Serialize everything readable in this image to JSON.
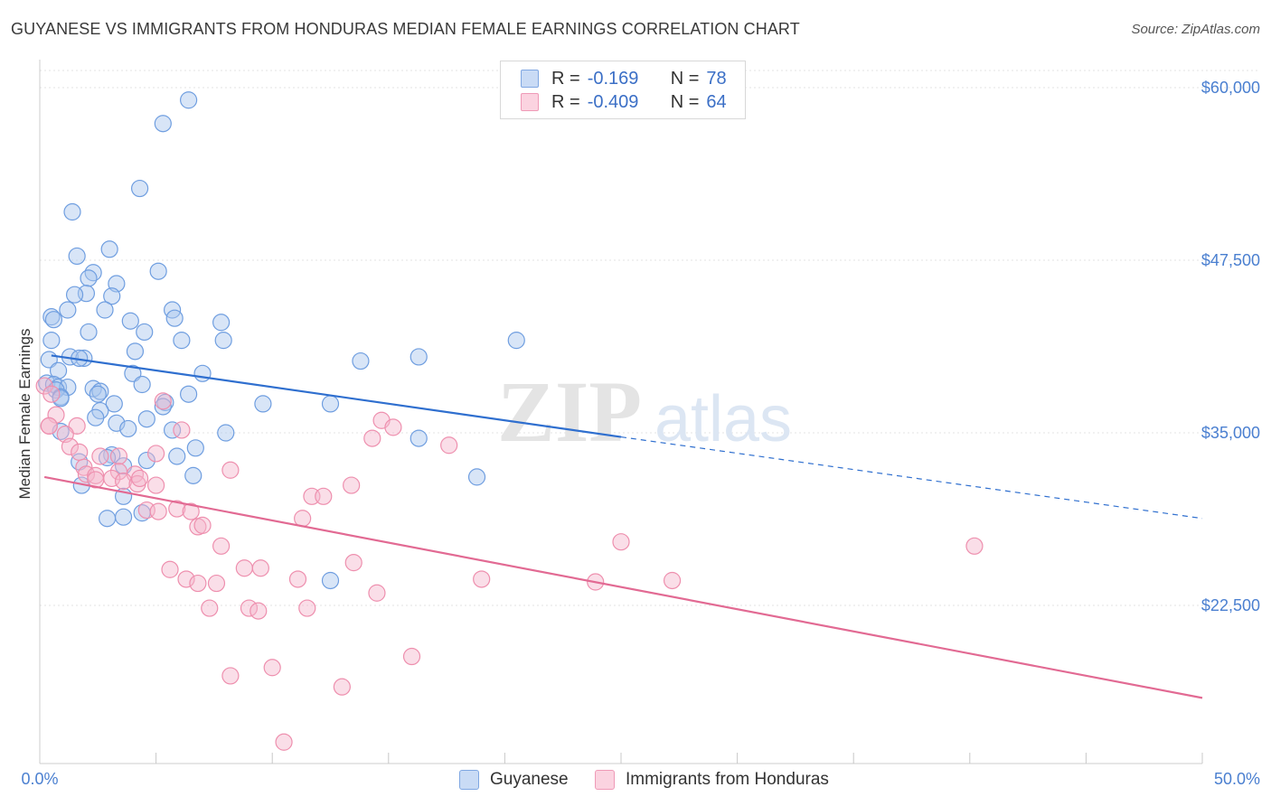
{
  "header": {
    "title": "GUYANESE VS IMMIGRANTS FROM HONDURAS MEDIAN FEMALE EARNINGS CORRELATION CHART",
    "source": "Source: ZipAtlas.com"
  },
  "watermark": {
    "zip": "ZIP",
    "atlas": "atlas"
  },
  "legend": {
    "r_label": "R =",
    "n_label": "N =",
    "rows": [
      {
        "name": "Guyanese",
        "r": "-0.169",
        "n": "78",
        "color": "#a9c6ee"
      },
      {
        "name": "Immigrants from Honduras",
        "r": "-0.409",
        "n": "64",
        "color": "#f5b6cb"
      }
    ]
  },
  "chart_data": {
    "type": "scatter",
    "title": "GUYANESE VS IMMIGRANTS FROM HONDURAS MEDIAN FEMALE EARNINGS CORRELATION CHART",
    "xlabel": "",
    "ylabel": "Median Female Earnings",
    "xlim": [
      0,
      50
    ],
    "ylim": [
      12000,
      62000
    ],
    "x_tick_labels": [
      "0.0%",
      "50.0%"
    ],
    "y_ticks": [
      {
        "value": 60000,
        "label": "$60,000"
      },
      {
        "value": 47500,
        "label": "$47,500"
      },
      {
        "value": 35000,
        "label": "$35,000"
      },
      {
        "value": 22500,
        "label": "$22,500"
      }
    ],
    "grid": true,
    "legend_position": "top-center",
    "series": [
      {
        "name": "Guyanese",
        "color": "#6f9ee0",
        "fill": "#a9c6ee",
        "line_color": "#2f6fcf",
        "trend": {
          "x": [
            0.5,
            25
          ],
          "y": [
            40600,
            34700
          ],
          "dashed_to": [
            50,
            28800
          ]
        },
        "points": [
          [
            6.4,
            59100
          ],
          [
            5.3,
            57400
          ],
          [
            4.3,
            52700
          ],
          [
            1.4,
            51000
          ],
          [
            3.0,
            48300
          ],
          [
            1.6,
            47800
          ],
          [
            5.1,
            46700
          ],
          [
            2.3,
            46600
          ],
          [
            2.1,
            46200
          ],
          [
            3.3,
            45800
          ],
          [
            2.0,
            45100
          ],
          [
            1.5,
            45000
          ],
          [
            3.1,
            44900
          ],
          [
            5.7,
            43900
          ],
          [
            2.8,
            43900
          ],
          [
            1.2,
            43900
          ],
          [
            0.5,
            43400
          ],
          [
            0.6,
            43200
          ],
          [
            3.9,
            43100
          ],
          [
            5.8,
            43300
          ],
          [
            7.8,
            43000
          ],
          [
            2.1,
            42300
          ],
          [
            4.5,
            42300
          ],
          [
            0.5,
            41700
          ],
          [
            6.1,
            41700
          ],
          [
            7.9,
            41700
          ],
          [
            20.5,
            41700
          ],
          [
            4.1,
            40900
          ],
          [
            1.3,
            40500
          ],
          [
            1.9,
            40400
          ],
          [
            1.7,
            40400
          ],
          [
            13.8,
            40200
          ],
          [
            16.3,
            40500
          ],
          [
            0.4,
            40300
          ],
          [
            0.8,
            39500
          ],
          [
            4.0,
            39300
          ],
          [
            7.0,
            39300
          ],
          [
            0.3,
            38600
          ],
          [
            0.6,
            38500
          ],
          [
            0.8,
            38300
          ],
          [
            1.2,
            38300
          ],
          [
            4.4,
            38500
          ],
          [
            2.3,
            38200
          ],
          [
            2.6,
            38000
          ],
          [
            0.7,
            38100
          ],
          [
            2.5,
            37800
          ],
          [
            6.4,
            37800
          ],
          [
            0.9,
            37600
          ],
          [
            0.9,
            37500
          ],
          [
            3.2,
            37100
          ],
          [
            5.4,
            37200
          ],
          [
            12.5,
            37100
          ],
          [
            9.6,
            37100
          ],
          [
            2.6,
            36600
          ],
          [
            5.3,
            36900
          ],
          [
            2.4,
            36100
          ],
          [
            4.6,
            36000
          ],
          [
            3.3,
            35700
          ],
          [
            3.8,
            35300
          ],
          [
            0.9,
            35100
          ],
          [
            5.7,
            35200
          ],
          [
            8.0,
            35000
          ],
          [
            16.3,
            34600
          ],
          [
            6.7,
            33900
          ],
          [
            3.1,
            33400
          ],
          [
            2.9,
            33200
          ],
          [
            5.9,
            33300
          ],
          [
            1.7,
            32900
          ],
          [
            4.6,
            33000
          ],
          [
            3.6,
            32600
          ],
          [
            6.6,
            31900
          ],
          [
            18.8,
            31800
          ],
          [
            1.8,
            31200
          ],
          [
            3.6,
            30400
          ],
          [
            3.6,
            28900
          ],
          [
            4.4,
            29200
          ],
          [
            12.5,
            24300
          ],
          [
            2.9,
            28800
          ]
        ]
      },
      {
        "name": "Immigrants from Honduras",
        "color": "#ee8fae",
        "fill": "#f5b6cb",
        "line_color": "#e26a93",
        "trend": {
          "x": [
            0.2,
            50
          ],
          "y": [
            31800,
            15800
          ]
        },
        "points": [
          [
            0.2,
            38400
          ],
          [
            0.5,
            37800
          ],
          [
            0.7,
            36300
          ],
          [
            5.3,
            37300
          ],
          [
            0.4,
            35500
          ],
          [
            1.6,
            35500
          ],
          [
            14.7,
            35900
          ],
          [
            15.2,
            35400
          ],
          [
            6.1,
            35200
          ],
          [
            1.1,
            34900
          ],
          [
            14.3,
            34600
          ],
          [
            17.6,
            34100
          ],
          [
            1.3,
            34000
          ],
          [
            1.7,
            33600
          ],
          [
            2.6,
            33300
          ],
          [
            5.0,
            33500
          ],
          [
            3.4,
            33300
          ],
          [
            1.9,
            32500
          ],
          [
            3.4,
            32200
          ],
          [
            8.2,
            32300
          ],
          [
            2.0,
            32000
          ],
          [
            2.4,
            31900
          ],
          [
            4.1,
            32000
          ],
          [
            3.1,
            31700
          ],
          [
            3.6,
            31500
          ],
          [
            4.2,
            31300
          ],
          [
            5.0,
            31200
          ],
          [
            4.3,
            31700
          ],
          [
            13.4,
            31200
          ],
          [
            11.7,
            30400
          ],
          [
            12.2,
            30400
          ],
          [
            4.6,
            29400
          ],
          [
            5.1,
            29300
          ],
          [
            5.9,
            29500
          ],
          [
            6.5,
            29300
          ],
          [
            11.3,
            28800
          ],
          [
            6.8,
            28200
          ],
          [
            7.0,
            28300
          ],
          [
            25.0,
            27100
          ],
          [
            7.8,
            26800
          ],
          [
            40.2,
            26800
          ],
          [
            13.5,
            25600
          ],
          [
            5.6,
            25100
          ],
          [
            8.8,
            25200
          ],
          [
            9.5,
            25200
          ],
          [
            6.3,
            24400
          ],
          [
            6.8,
            24100
          ],
          [
            7.6,
            24100
          ],
          [
            11.1,
            24400
          ],
          [
            19.0,
            24400
          ],
          [
            23.9,
            24200
          ],
          [
            27.2,
            24300
          ],
          [
            14.5,
            23400
          ],
          [
            7.3,
            22300
          ],
          [
            9.0,
            22300
          ],
          [
            9.4,
            22100
          ],
          [
            11.5,
            22300
          ],
          [
            16.0,
            18800
          ],
          [
            10.0,
            18000
          ],
          [
            8.2,
            17400
          ],
          [
            13.0,
            16600
          ],
          [
            10.5,
            12600
          ],
          [
            0.4,
            35500
          ],
          [
            2.4,
            31600
          ]
        ]
      }
    ]
  }
}
